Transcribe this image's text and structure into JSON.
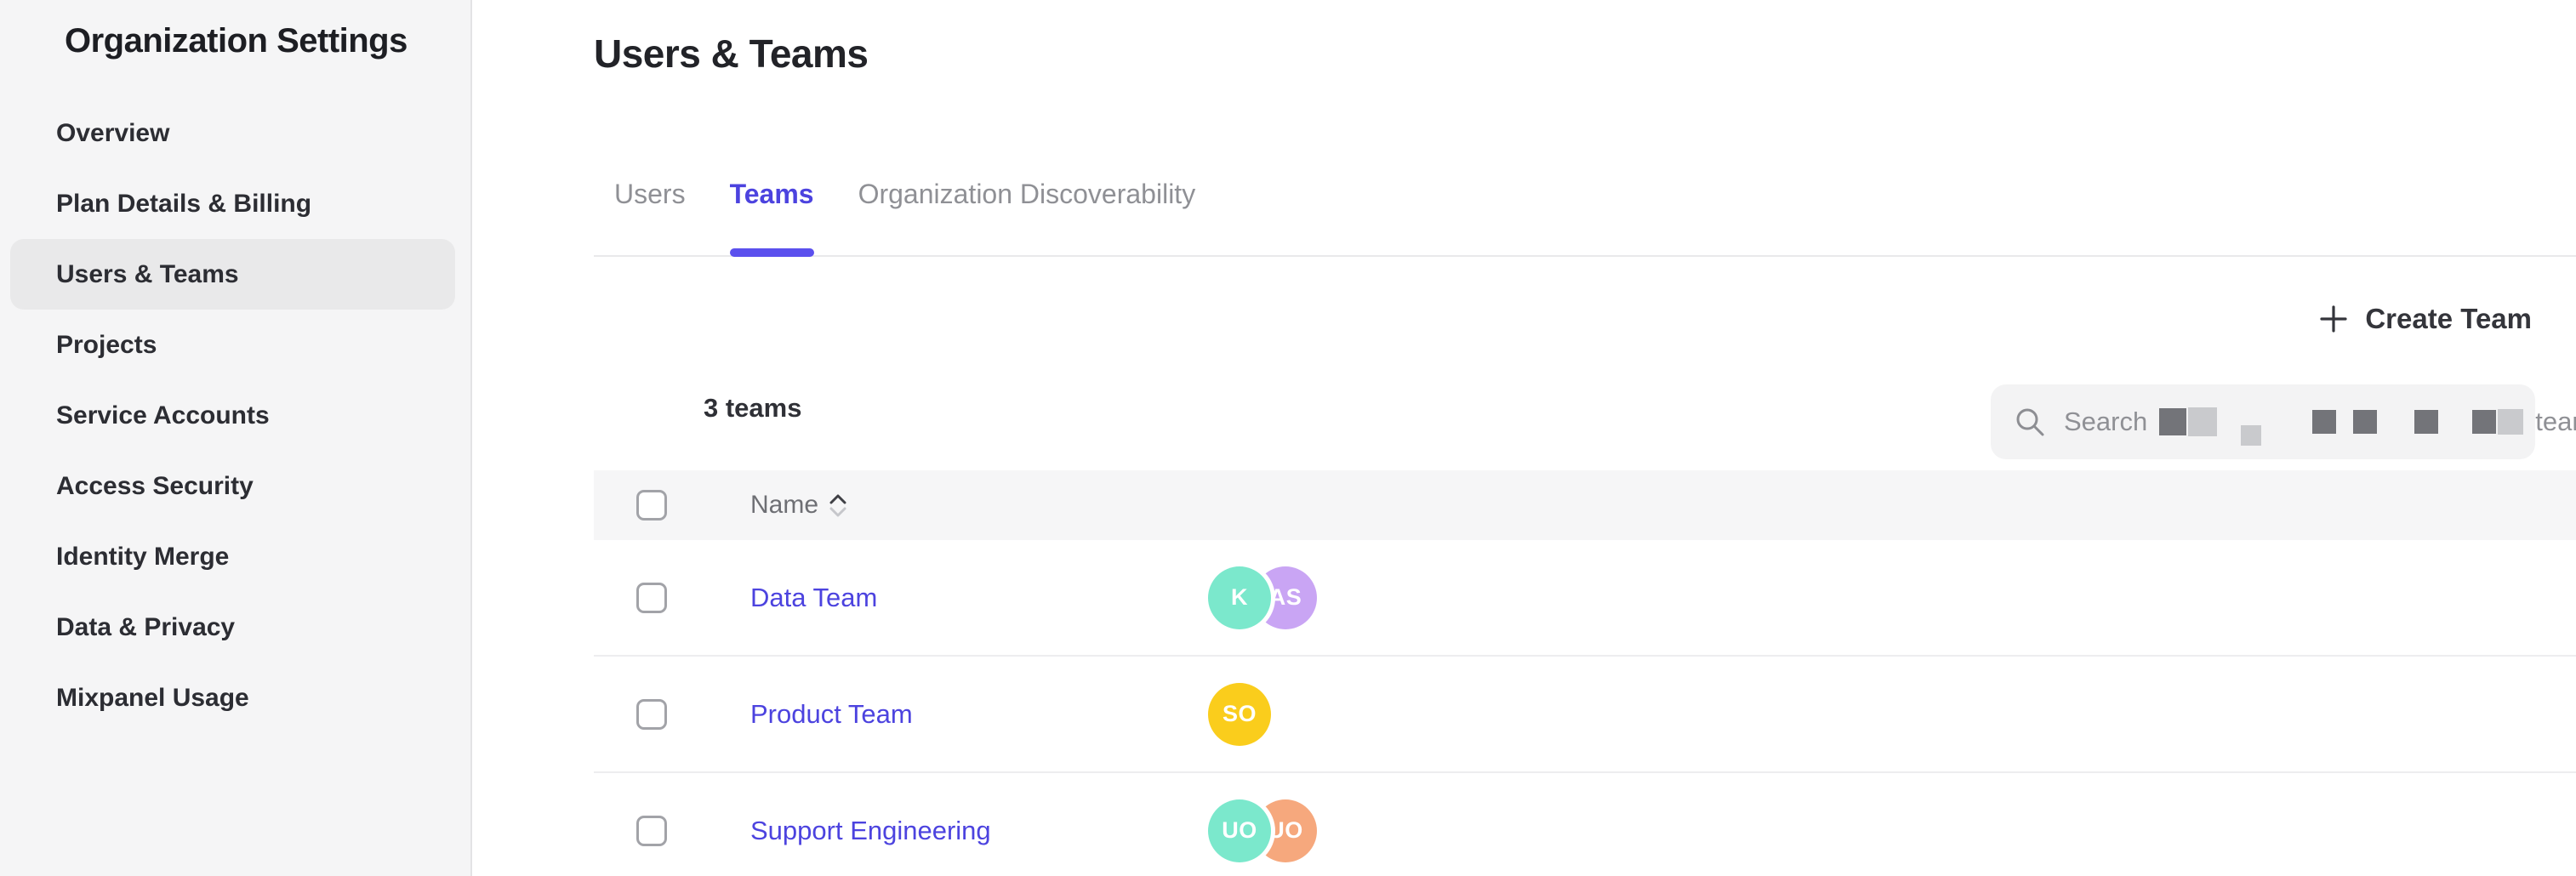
{
  "sidebar": {
    "title": "Organization Settings",
    "items": [
      {
        "label": "Overview",
        "selected": false
      },
      {
        "label": "Plan Details & Billing",
        "selected": false
      },
      {
        "label": "Users & Teams",
        "selected": true
      },
      {
        "label": "Projects",
        "selected": false
      },
      {
        "label": "Service Accounts",
        "selected": false
      },
      {
        "label": "Access Security",
        "selected": false
      },
      {
        "label": "Identity Merge",
        "selected": false
      },
      {
        "label": "Data & Privacy",
        "selected": false
      },
      {
        "label": "Mixpanel Usage",
        "selected": false
      }
    ]
  },
  "main": {
    "title": "Users & Teams",
    "tabs": [
      {
        "label": "Users",
        "active": false
      },
      {
        "label": "Teams",
        "active": true
      },
      {
        "label": "Organization Discoverability",
        "active": false
      }
    ],
    "create_team": {
      "label": "Create Team",
      "icon": "plus-icon"
    },
    "summary": {
      "teams_count": "3 teams"
    },
    "search": {
      "icon": "search-icon",
      "text_prefix": "Search",
      "text_suffix": "teams",
      "middle_redacted": true
    },
    "table": {
      "columns": [
        {
          "label": "Name",
          "sortable": true
        }
      ],
      "rows": [
        {
          "team": "Data Team",
          "members": [
            {
              "initials": "K",
              "color": "#7BE8CC"
            },
            {
              "initials": "AS",
              "color": "#C9A5F4"
            }
          ]
        },
        {
          "team": "Product Team",
          "members": [
            {
              "initials": "SO",
              "color": "#FACD1C"
            }
          ]
        },
        {
          "team": "Support Engineering",
          "members": [
            {
              "initials": "UO",
              "color": "#7BE8CC"
            },
            {
              "initials": "UO",
              "color": "#F6A87D"
            }
          ]
        }
      ]
    }
  },
  "colors": {
    "accent": "#4c43df",
    "tab_indicator": "#5b50ee",
    "link": "#4c43df",
    "sidebar_bg": "#f5f5f6",
    "selected_item_bg": "#e9e9ea",
    "header_row_bg": "#f6f6f7",
    "avatar_mint": "#7BE8CC",
    "avatar_lavender": "#C9A5F4",
    "avatar_yellow": "#FACD1C",
    "avatar_orange": "#F6A87D"
  }
}
